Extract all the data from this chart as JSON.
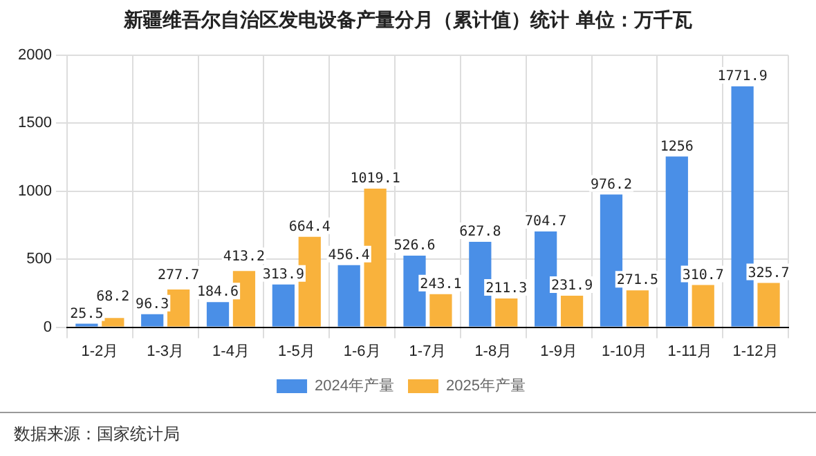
{
  "chart_data": {
    "type": "bar",
    "title": "新疆维吾尔自治区发电设备产量分月（累计值）统计 单位：万千瓦",
    "categories": [
      "1-2月",
      "1-3月",
      "1-4月",
      "1-5月",
      "1-6月",
      "1-7月",
      "1-8月",
      "1-9月",
      "1-10月",
      "1-11月",
      "1-12月"
    ],
    "series": [
      {
        "name": "2024年产量",
        "color": "#4a8fe7",
        "values": [
          25.5,
          96.3,
          184.6,
          313.9,
          456.4,
          526.6,
          627.8,
          704.7,
          976.2,
          1256,
          1771.9
        ]
      },
      {
        "name": "2025年产量",
        "color": "#f9b23c",
        "values": [
          68.2,
          277.7,
          413.2,
          664.4,
          1019.1,
          243.1,
          211.3,
          231.9,
          271.5,
          310.7,
          325.7
        ]
      }
    ],
    "ylim": [
      0,
      2000
    ],
    "yticks": [
      0,
      500,
      1000,
      1500,
      2000
    ],
    "grid": true,
    "legend": "bottom",
    "data_labels": true,
    "annotations": [
      "数据来源：国家统计局"
    ]
  }
}
